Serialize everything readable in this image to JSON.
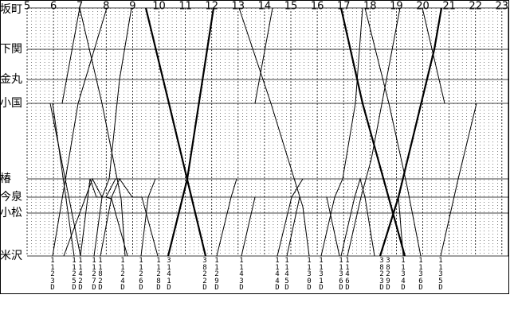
{
  "hours": [
    "5",
    "6",
    "7",
    "8",
    "9",
    "10",
    "11",
    "12",
    "13",
    "14",
    "15",
    "16",
    "17",
    "18",
    "19",
    "20",
    "21",
    "22",
    "23"
  ],
  "stations": [
    "坂町",
    "下関",
    "金丸",
    "小国",
    "椿",
    "今泉",
    "小松",
    "米沢"
  ],
  "trains": [
    "1123D",
    "1125D",
    "1142D",
    "1127D",
    "1182D",
    "1124D",
    "1126D",
    "1128D",
    "3141D",
    "3822D",
    "1129D",
    "1143D",
    "1144D",
    "1145D",
    "1130D",
    "1131D",
    "1136D",
    "1146D",
    "3823D",
    "3829D",
    "1134D",
    "1136D",
    "1135D"
  ]
}
